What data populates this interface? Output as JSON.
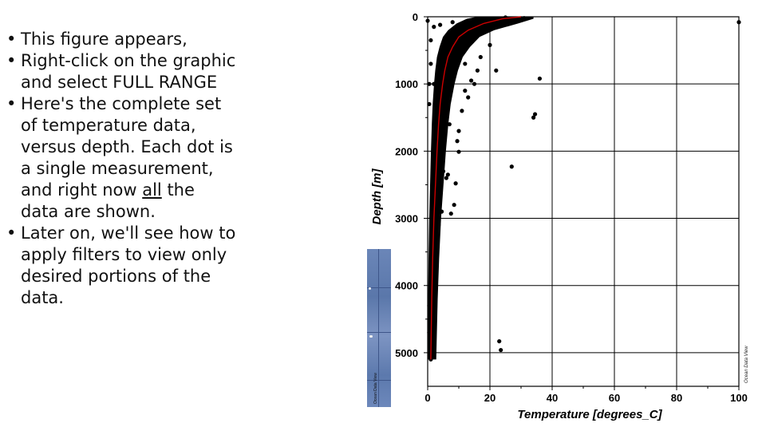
{
  "slide": {
    "bullets": [
      {
        "parts": [
          {
            "text": "This figure appears,",
            "u": false
          }
        ]
      },
      {
        "parts": [
          {
            "text": "Right-click on the graphic and select FULL RANGE",
            "u": false
          }
        ]
      },
      {
        "parts": [
          {
            "text": "Here's the complete set of temperature data, versus depth. Each dot is a single measurement, and right now ",
            "u": false
          },
          {
            "text": "all",
            "u": true
          },
          {
            "text": " the data are shown.",
            "u": false
          }
        ]
      },
      {
        "parts": [
          {
            "text": "Later on, we'll see how to apply filters to view only desired portions of the data.",
            "u": false
          }
        ]
      }
    ]
  },
  "map_strip": {
    "watermark": "Ocean Data View",
    "color": "#6b86b8"
  },
  "chart_data": {
    "type": "scatter",
    "title": "",
    "xlabel": "Temperature [degrees_C]",
    "ylabel": "Depth [m]",
    "xlim": [
      0,
      100
    ],
    "ylim": [
      0,
      5500
    ],
    "y_inverted": true,
    "x_ticks": [
      0,
      20,
      40,
      60,
      80,
      100
    ],
    "y_ticks": [
      0,
      1000,
      2000,
      3000,
      4000,
      5000
    ],
    "grid": true,
    "watermark": "Ocean Data View",
    "point_color": "#000000",
    "mean_line_color": "#cc0000",
    "mean_profile": [
      {
        "x": 30.0,
        "y": 0
      },
      {
        "x": 24.0,
        "y": 30
      },
      {
        "x": 18.0,
        "y": 100
      },
      {
        "x": 13.0,
        "y": 200
      },
      {
        "x": 10.0,
        "y": 300
      },
      {
        "x": 8.0,
        "y": 450
      },
      {
        "x": 6.5,
        "y": 600
      },
      {
        "x": 5.5,
        "y": 800
      },
      {
        "x": 4.8,
        "y": 1000
      },
      {
        "x": 4.0,
        "y": 1300
      },
      {
        "x": 3.5,
        "y": 1600
      },
      {
        "x": 3.0,
        "y": 2000
      },
      {
        "x": 2.5,
        "y": 2500
      },
      {
        "x": 2.0,
        "y": 3000
      },
      {
        "x": 1.6,
        "y": 3600
      },
      {
        "x": 1.3,
        "y": 4200
      },
      {
        "x": 1.1,
        "y": 4800
      },
      {
        "x": 1.0,
        "y": 5100
      }
    ],
    "points": [
      {
        "x": 100,
        "y": 80
      },
      {
        "x": 36,
        "y": 920
      },
      {
        "x": 22,
        "y": 800
      },
      {
        "x": 34.5,
        "y": 1450
      },
      {
        "x": 34,
        "y": 1500
      },
      {
        "x": 27,
        "y": 2230
      },
      {
        "x": 9,
        "y": 2480
      },
      {
        "x": 8.5,
        "y": 2800
      },
      {
        "x": 7.5,
        "y": 2930
      },
      {
        "x": 23,
        "y": 4830
      },
      {
        "x": 23.5,
        "y": 4960
      },
      {
        "x": 10,
        "y": 2010
      },
      {
        "x": 9.5,
        "y": 1850
      },
      {
        "x": 12,
        "y": 1100
      },
      {
        "x": 14,
        "y": 950
      },
      {
        "x": 17,
        "y": 600
      },
      {
        "x": 20,
        "y": 420
      },
      {
        "x": 15,
        "y": 1000
      },
      {
        "x": 11,
        "y": 1400
      },
      {
        "x": 13,
        "y": 1200
      },
      {
        "x": 0,
        "y": 60
      },
      {
        "x": 1,
        "y": 350
      },
      {
        "x": 1,
        "y": 700
      },
      {
        "x": 0.5,
        "y": 1000
      },
      {
        "x": 0.5,
        "y": 1300
      },
      {
        "x": 3,
        "y": 3380
      },
      {
        "x": 2.5,
        "y": 3440
      },
      {
        "x": 0.5,
        "y": 4300
      },
      {
        "x": 0.5,
        "y": 4700
      },
      {
        "x": 2,
        "y": 1000
      },
      {
        "x": 7,
        "y": 1600
      },
      {
        "x": 6,
        "y": 2400
      },
      {
        "x": 5,
        "y": 2300
      },
      {
        "x": 4.5,
        "y": 2900
      },
      {
        "x": 3.5,
        "y": 3100
      },
      {
        "x": 6.5,
        "y": 2350
      },
      {
        "x": 2,
        "y": 4000
      },
      {
        "x": 1.5,
        "y": 4400
      },
      {
        "x": 1.5,
        "y": 4900
      },
      {
        "x": 0.8,
        "y": 5000
      },
      {
        "x": 1.0,
        "y": 5100
      },
      {
        "x": 18,
        "y": 50
      },
      {
        "x": 25,
        "y": 10
      },
      {
        "x": 28,
        "y": 30
      },
      {
        "x": 31,
        "y": 20
      },
      {
        "x": 8,
        "y": 80
      },
      {
        "x": 4,
        "y": 120
      },
      {
        "x": 2,
        "y": 150
      },
      {
        "x": 12,
        "y": 700
      },
      {
        "x": 16,
        "y": 800
      },
      {
        "x": 10,
        "y": 1700
      }
    ]
  }
}
